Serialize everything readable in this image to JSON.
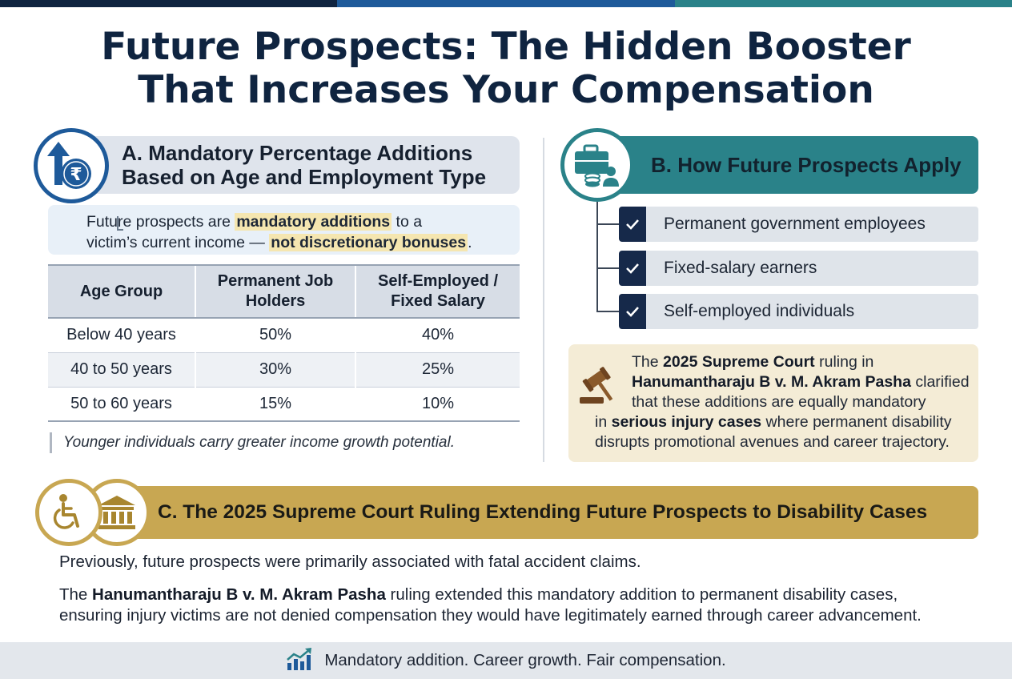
{
  "colors": {
    "navy": "#0f2440",
    "blue": "#1e5a9a",
    "teal": "#2a8289",
    "gold": "#c8a752"
  },
  "title": {
    "line1": "Future Prospects: The Hidden Booster",
    "line2": "That Increases Your Compensation"
  },
  "sectionA": {
    "icon": "rupee-growth-arrow-icon",
    "heading_line1": "A. Mandatory Percentage Additions",
    "heading_line2": "Based on Age and Employment Type",
    "note": {
      "part1": "Future prospects are ",
      "highlight1": "mandatory additions",
      "part2": " to a",
      "part3": "victim’s current income — ",
      "highlight2": "not discretionary bonuses",
      "part4": "."
    },
    "table": {
      "headers": [
        {
          "line1": "Age Group",
          "line2": ""
        },
        {
          "line1": "Permanent Job",
          "line2": "Holders"
        },
        {
          "line1": "Self-Employed /",
          "line2": "Fixed Salary"
        }
      ],
      "rows": [
        {
          "age": "Below 40 years",
          "permanent": "50%",
          "self_employed": "40%"
        },
        {
          "age": "40 to 50 years",
          "permanent": "30%",
          "self_employed": "25%"
        },
        {
          "age": "50 to 60 years",
          "permanent": "15%",
          "self_employed": "10%"
        }
      ]
    },
    "footnote": "Younger individuals carry greater income growth potential."
  },
  "sectionB": {
    "icon": "briefcase-coins-person-icon",
    "heading": "B. How Future Prospects Apply",
    "items": [
      "Permanent government employees",
      "Fixed-salary earners",
      "Self-employed individuals"
    ],
    "court_note": {
      "l1_pre": "The ",
      "l1_bold": "2025 Supreme Court",
      "l1_post": " ruling in",
      "l2_bold": "Hanumantharaju B v. M. Akram Pasha",
      "l2_post": " clarified",
      "l3": "that these additions are equally mandatory",
      "l4_pre": "in ",
      "l4_bold": "serious injury cases",
      "l4_post": " where permanent disability",
      "l5": "disrupts promotional avenues and career trajectory."
    }
  },
  "sectionC": {
    "icons": [
      "wheelchair-icon",
      "courthouse-icon"
    ],
    "heading": "C. The 2025 Supreme Court Ruling Extending Future Prospects to Disability Cases",
    "para1": "Previously, future prospects were primarily associated with fatal accident claims.",
    "para2": {
      "pre": "The ",
      "bold": "Hanumantharaju B v. M. Akram Pasha",
      "post": " ruling extended this mandatory addition to permanent disability cases,",
      "line2": "ensuring injury victims are not denied compensation they would have legitimately earned through career advancement."
    }
  },
  "footer": {
    "icon": "growth-chart-icon",
    "text": "Mandatory addition. Career growth. Fair compensation."
  }
}
